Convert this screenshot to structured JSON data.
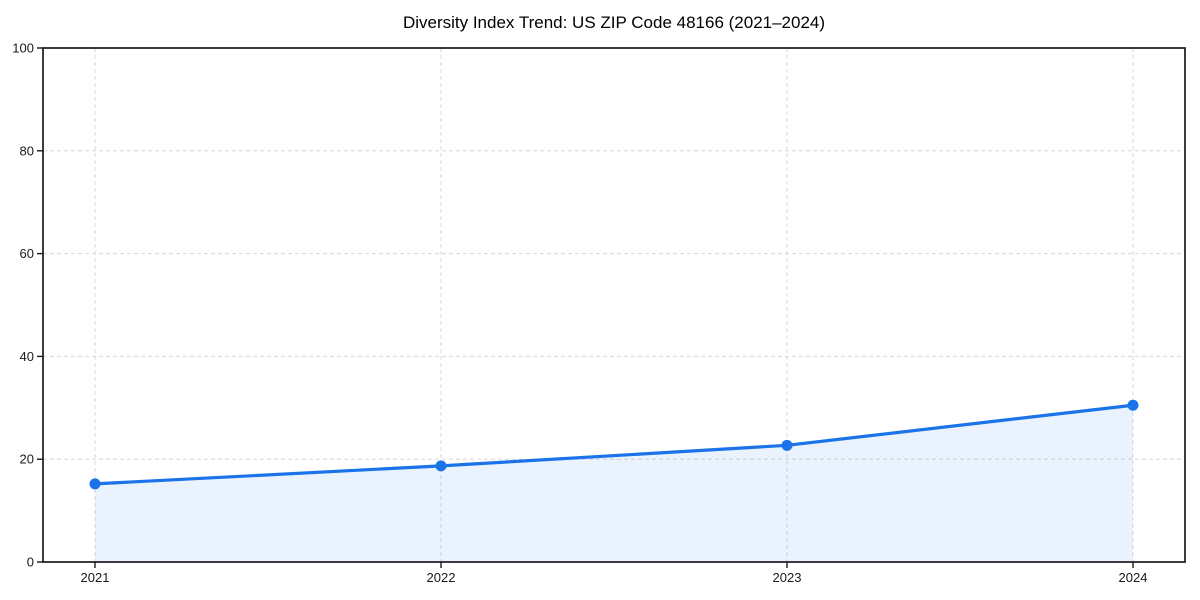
{
  "chart_data": {
    "type": "area",
    "title": "Diversity Index Trend: US ZIP Code 48166 (2021–2024)",
    "x": [
      "2021",
      "2022",
      "2023",
      "2024"
    ],
    "series": [
      {
        "name": "Diversity Index",
        "values": [
          15.2,
          18.7,
          22.7,
          30.5
        ]
      }
    ],
    "xlabel": "",
    "ylabel": "",
    "ylim": [
      0,
      100
    ],
    "yticks": [
      0,
      20,
      40,
      60,
      80,
      100
    ],
    "grid": "dashed-both-axes",
    "legend": "none",
    "colors": {
      "line": "#1a73e8",
      "marker": "#1a73e8",
      "fill": "#1a73e8",
      "fill_opacity": 0.09,
      "grid": "#dcdcdc",
      "axis": "#1a1a1a",
      "tick_label": "#1a1a1a",
      "title": "#000000"
    }
  }
}
